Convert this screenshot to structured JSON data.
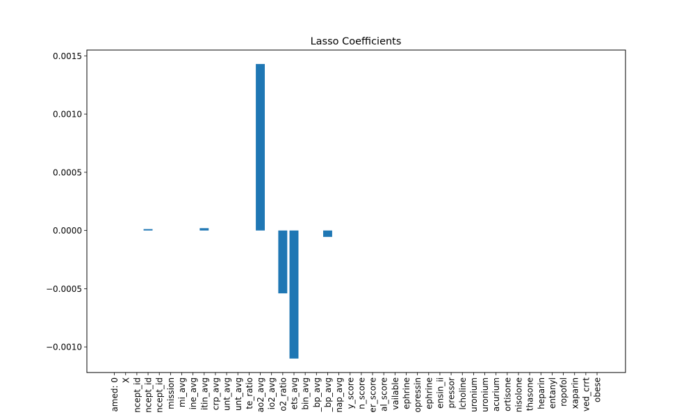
{
  "chart_data": {
    "type": "bar",
    "title": "Lasso Coefficients",
    "xlabel": "",
    "ylabel": "",
    "ylim": [
      -0.00122,
      0.00155
    ],
    "yticks": [
      -0.001,
      -0.0005,
      0.0,
      0.0005,
      0.001,
      0.0015
    ],
    "ytick_labels": [
      "−0.0010",
      "−0.0005",
      "0.0000",
      "0.0005",
      "0.0010",
      "0.0015"
    ],
    "bar_color": "#1f77b4",
    "grid": false,
    "categories": [
      "amed: 0",
      "X",
      "ncept_id",
      "ncept_id",
      "ncept_id",
      "mission",
      "mi_avg",
      "ine_avg",
      "itin_avg",
      "crp_avg",
      "unt_avg",
      "unt_avg",
      "te_ratio",
      "ao2_avg",
      "io2_avg",
      "o2_ratio",
      "ets_avg",
      "bin_avg",
      "_bp_avg",
      "_bp_avg",
      "nap_avg",
      "y_score",
      "n_score",
      "er_score",
      "al_score",
      "vailable",
      "ephrine",
      "opressin",
      "ephrine",
      "ensin_ii",
      "pressor",
      "lcholine",
      "uronium",
      "uronium",
      "acurium",
      "ortisone",
      "nisolone",
      "thasone",
      "heparin",
      "entanyl",
      "ropofol",
      "xaparin",
      "ved_crrt",
      "obese"
    ],
    "values": [
      0,
      0,
      0,
      1.2e-05,
      0,
      0,
      0,
      0,
      2e-05,
      0,
      0,
      0,
      0,
      0.00143,
      0,
      -0.00054,
      -0.0011,
      0,
      0,
      -5.5e-05,
      0,
      0,
      0,
      0,
      0,
      0,
      0,
      0,
      0,
      0,
      0,
      0,
      0,
      0,
      0,
      0,
      0,
      0,
      0,
      0,
      0,
      0,
      0,
      0
    ]
  }
}
